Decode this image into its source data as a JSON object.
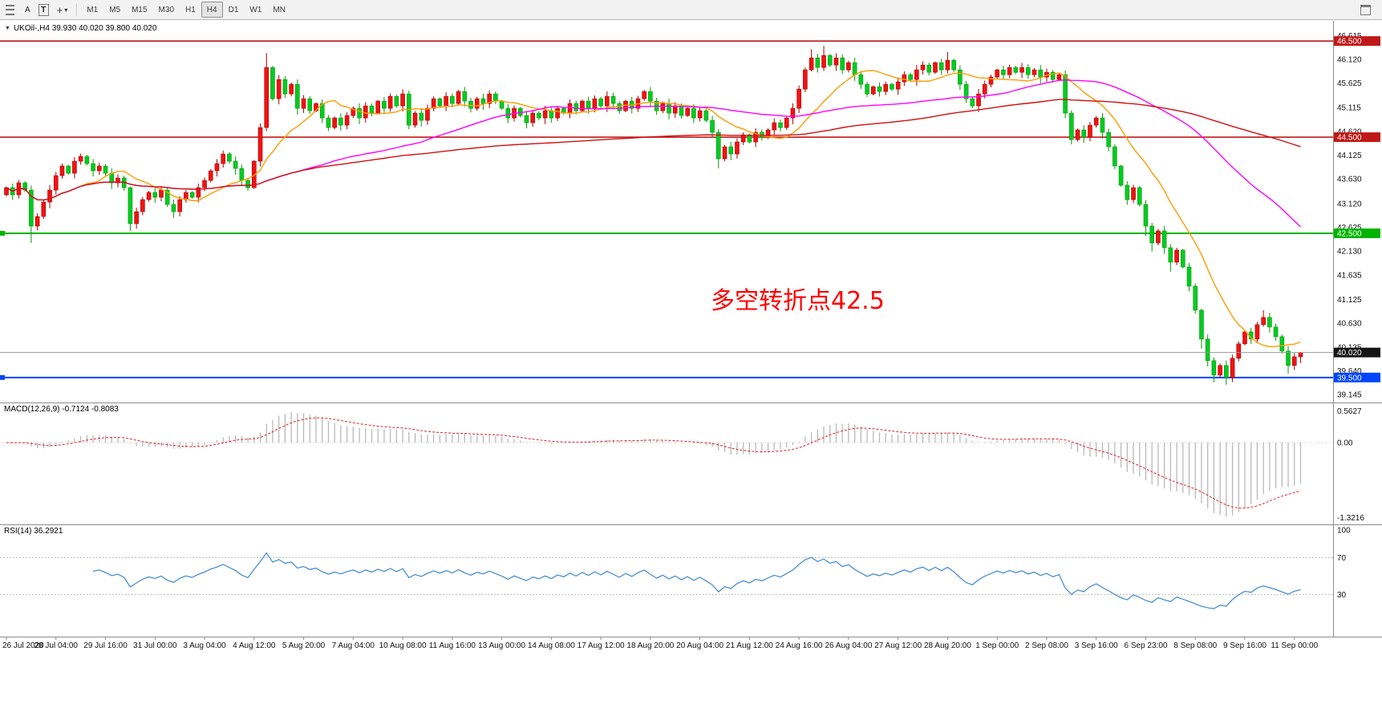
{
  "icons": {
    "collapse_triangle": "▼",
    "crosshair": "+",
    "caret": "▾"
  },
  "toolbar": {
    "arrow_tool_label": "A",
    "text_tool_label": "T",
    "timeframes": [
      "M1",
      "M5",
      "M15",
      "M30",
      "H1",
      "H4",
      "D1",
      "W1",
      "MN"
    ],
    "active_timeframe": "H4"
  },
  "chart_data": {
    "type": "candlestick",
    "symbol": "UKOil-",
    "timeframe": "H4",
    "title": "UKOil-,H4  39.930 40.020 39.800 40.020",
    "ohlc_current": {
      "open": 39.93,
      "high": 40.02,
      "low": 39.8,
      "close": 40.02
    },
    "annotation": {
      "text": "多空转折点42.5",
      "color": "#ff0000"
    },
    "candle_style": {
      "up_fill": "#f21212",
      "up_stroke": "#a80000",
      "down_fill": "#00cc22",
      "down_stroke": "#089808"
    },
    "ohlc": {
      "first_open": 43.3,
      "closes": [
        43.45,
        43.3,
        43.55,
        43.4,
        42.65,
        42.85,
        43.15,
        43.4,
        43.7,
        43.9,
        43.75,
        44.0,
        44.1,
        43.95,
        43.8,
        43.9,
        43.75,
        43.55,
        43.65,
        43.45,
        42.7,
        42.95,
        43.2,
        43.35,
        43.25,
        43.4,
        43.1,
        42.95,
        43.2,
        43.35,
        43.25,
        43.45,
        43.6,
        43.8,
        43.95,
        44.15,
        44.0,
        43.85,
        43.6,
        43.45,
        44.0,
        44.7,
        45.95,
        45.3,
        45.7,
        45.4,
        45.6,
        45.1,
        45.3,
        45.05,
        45.2,
        44.9,
        44.7,
        44.9,
        44.75,
        44.95,
        45.1,
        44.9,
        45.15,
        45.0,
        45.25,
        45.1,
        45.35,
        45.15,
        45.4,
        44.75,
        45.0,
        44.85,
        45.1,
        45.3,
        45.15,
        45.35,
        45.2,
        45.45,
        45.25,
        45.1,
        45.3,
        45.2,
        45.4,
        45.25,
        45.1,
        44.9,
        45.1,
        44.95,
        44.8,
        45.0,
        44.9,
        45.05,
        44.9,
        45.1,
        45.0,
        45.2,
        45.05,
        45.25,
        45.1,
        45.3,
        45.15,
        45.35,
        45.2,
        45.05,
        45.25,
        45.1,
        45.3,
        45.45,
        45.25,
        45.05,
        45.2,
        45.0,
        45.15,
        44.95,
        45.1,
        44.9,
        45.05,
        44.85,
        44.6,
        44.05,
        44.3,
        44.15,
        44.4,
        44.55,
        44.4,
        44.6,
        44.5,
        44.65,
        44.8,
        44.7,
        44.9,
        45.1,
        45.5,
        45.9,
        46.15,
        45.95,
        46.2,
        46.0,
        46.15,
        45.9,
        46.05,
        45.8,
        45.6,
        45.4,
        45.55,
        45.45,
        45.6,
        45.5,
        45.65,
        45.8,
        45.7,
        45.9,
        46.0,
        45.85,
        46.05,
        45.9,
        46.1,
        45.9,
        45.6,
        45.3,
        45.15,
        45.4,
        45.6,
        45.75,
        45.9,
        45.8,
        45.95,
        45.85,
        45.95,
        45.8,
        45.9,
        45.75,
        45.85,
        45.7,
        45.8,
        45.0,
        44.45,
        44.65,
        44.5,
        44.75,
        44.9,
        44.6,
        44.3,
        43.9,
        43.5,
        43.2,
        43.45,
        43.1,
        42.65,
        42.3,
        42.55,
        42.2,
        41.9,
        42.15,
        41.8,
        41.4,
        40.9,
        40.3,
        39.85,
        39.55,
        39.75,
        39.5,
        39.9,
        40.2,
        40.45,
        40.3,
        40.6,
        40.75,
        40.55,
        40.35,
        40.05,
        39.75,
        39.93,
        40.02
      ],
      "extremes": {
        "4": {
          "l": 42.3
        },
        "20": {
          "l": 42.55
        },
        "42": {
          "h": 46.25
        },
        "115": {
          "l": 43.85
        },
        "130": {
          "h": 46.33
        },
        "132": {
          "h": 46.4
        },
        "152": {
          "h": 46.27
        },
        "172": {
          "l": 44.35
        },
        "184": {
          "l": 42.45
        },
        "185": {
          "l": 42.12
        },
        "188": {
          "l": 41.7
        },
        "193": {
          "l": 40.1
        },
        "195": {
          "l": 39.4
        },
        "197": {
          "l": 39.35
        },
        "203": {
          "h": 40.9
        },
        "207": {
          "l": 39.58
        },
        "209": {
          "h": 40.02,
          "l": 39.8
        }
      }
    },
    "price_axis": {
      "ymax": 46.92,
      "ymin": 38.98,
      "ticks": [
        "46.615",
        "46.120",
        "45.625",
        "45.115",
        "44.620",
        "44.125",
        "43.630",
        "43.120",
        "42.625",
        "42.130",
        "41.635",
        "41.125",
        "40.630",
        "40.135",
        "39.640",
        "39.145"
      ]
    },
    "hlines": [
      {
        "price": 46.5,
        "label": "46.500",
        "color": "#c01818",
        "width": 1.6,
        "marker": false
      },
      {
        "price": 44.5,
        "label": "44.500",
        "color": "#c01818",
        "width": 1.6,
        "marker": false
      },
      {
        "price": 42.5,
        "label": "42.500",
        "color": "#00b400",
        "width": 2,
        "marker": true
      },
      {
        "price": 39.5,
        "label": "39.500",
        "color": "#0045ff",
        "width": 2,
        "marker": true
      }
    ],
    "current_price": {
      "value": 40.02,
      "label": "40.020",
      "line_color": "#999999",
      "label_bg": "#141414"
    },
    "mas": [
      {
        "period": 12,
        "color": "#ff9c00"
      },
      {
        "period": 48,
        "color": "#ff00ff"
      },
      {
        "period": 130,
        "color": "#d01010"
      }
    ],
    "macd": {
      "label_text": "MACD(12,26,9) -0.7124 -0.8083",
      "params": [
        12,
        26,
        9
      ],
      "value": -0.7124,
      "signal_value": -0.8083,
      "axis": [
        "0.5627",
        "0.00",
        "-1.3216"
      ],
      "axis_values": [
        0.5627,
        0,
        -1.3216
      ],
      "hist_color": "#b4b4b4",
      "signal_color": "#e02020"
    },
    "rsi": {
      "label_text": "RSI(14) 36.2921",
      "period": 14,
      "value": 36.2921,
      "axis": [
        "100",
        "70",
        "30"
      ],
      "axis_values": [
        100,
        70,
        30
      ],
      "levels": [
        70,
        30
      ],
      "line_color": "#4a8fd3"
    },
    "time_labels": [
      "26 Jul 2020",
      "28 Jul 04:00",
      "29 Jul 16:00",
      "31 Jul 00:00",
      "3 Aug 04:00",
      "4 Aug 12:00",
      "5 Aug 20:00",
      "7 Aug 04:00",
      "10 Aug 08:00",
      "11 Aug 16:00",
      "13 Aug 00:00",
      "14 Aug 08:00",
      "17 Aug 12:00",
      "18 Aug 20:00",
      "20 Aug 04:00",
      "21 Aug 12:00",
      "24 Aug 16:00",
      "26 Aug 04:00",
      "27 Aug 12:00",
      "28 Aug 20:00",
      "1 Sep 00:00",
      "2 Sep 08:00",
      "3 Sep 16:00",
      "6 Sep 23:00",
      "8 Sep 08:00",
      "9 Sep 16:00",
      "11 Sep 00:00"
    ]
  }
}
